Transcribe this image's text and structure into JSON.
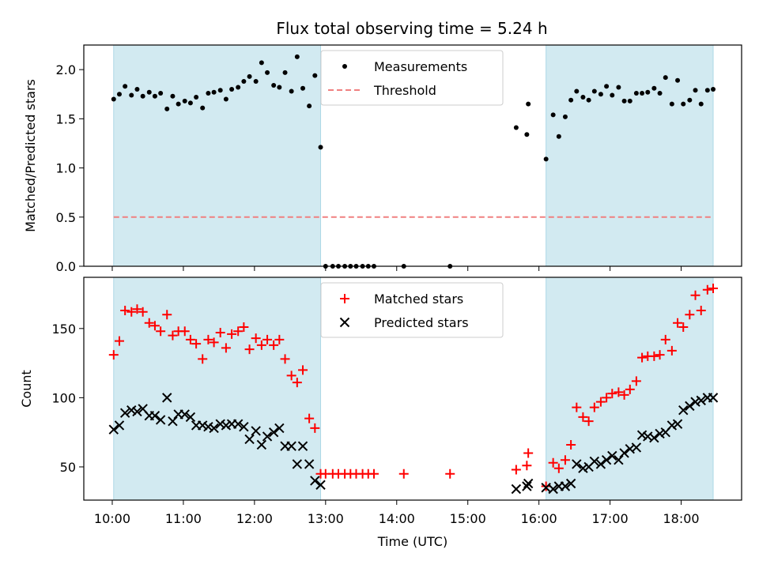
{
  "title": "Flux total observing time = 5.24 h",
  "colors": {
    "shade": "#add8e6",
    "measurement": "#000000",
    "threshold": "#f08080",
    "matched": "#ff0000",
    "predicted": "#000000"
  },
  "chart_data": [
    {
      "type": "scatter",
      "panel": "top",
      "ylabel": "Matched/Predicted stars",
      "xlabel": "",
      "xlim": [
        9.6,
        18.85
      ],
      "ylim": [
        0.0,
        2.25
      ],
      "yticks": [
        0.0,
        0.5,
        1.0,
        1.5,
        2.0
      ],
      "ytick_labels": [
        "0.0",
        "0.5",
        "1.0",
        "1.5",
        "2.0"
      ],
      "shaded_regions": [
        [
          10.02,
          12.93
        ],
        [
          16.1,
          18.45
        ]
      ],
      "threshold": {
        "name": "Threshold",
        "value": 0.5,
        "x_range": [
          10.02,
          18.45
        ]
      },
      "legend": {
        "position": "top-center",
        "entries": [
          "Measurements",
          "Threshold"
        ]
      },
      "series": [
        {
          "name": "Measurements",
          "points": [
            [
              10.02,
              1.7
            ],
            [
              10.1,
              1.75
            ],
            [
              10.18,
              1.83
            ],
            [
              10.27,
              1.74
            ],
            [
              10.35,
              1.8
            ],
            [
              10.43,
              1.73
            ],
            [
              10.52,
              1.77
            ],
            [
              10.6,
              1.73
            ],
            [
              10.68,
              1.76
            ],
            [
              10.77,
              1.6
            ],
            [
              10.85,
              1.73
            ],
            [
              10.93,
              1.65
            ],
            [
              11.02,
              1.68
            ],
            [
              11.1,
              1.66
            ],
            [
              11.18,
              1.72
            ],
            [
              11.27,
              1.61
            ],
            [
              11.35,
              1.76
            ],
            [
              11.43,
              1.77
            ],
            [
              11.52,
              1.79
            ],
            [
              11.6,
              1.7
            ],
            [
              11.68,
              1.8
            ],
            [
              11.77,
              1.82
            ],
            [
              11.85,
              1.88
            ],
            [
              11.93,
              1.93
            ],
            [
              12.02,
              1.88
            ],
            [
              12.1,
              2.07
            ],
            [
              12.18,
              1.97
            ],
            [
              12.27,
              1.84
            ],
            [
              12.35,
              1.82
            ],
            [
              12.43,
              1.97
            ],
            [
              12.52,
              1.78
            ],
            [
              12.6,
              2.13
            ],
            [
              12.68,
              1.81
            ],
            [
              12.77,
              1.63
            ],
            [
              12.85,
              1.94
            ],
            [
              12.93,
              1.21
            ],
            [
              13.0,
              0.0
            ],
            [
              13.1,
              0.0
            ],
            [
              13.18,
              0.0
            ],
            [
              13.27,
              0.0
            ],
            [
              13.35,
              0.0
            ],
            [
              13.43,
              0.0
            ],
            [
              13.52,
              0.0
            ],
            [
              13.6,
              0.0
            ],
            [
              13.68,
              0.0
            ],
            [
              14.1,
              0.0
            ],
            [
              14.75,
              0.0
            ],
            [
              15.68,
              1.41
            ],
            [
              15.83,
              1.34
            ],
            [
              15.85,
              1.65
            ],
            [
              16.1,
              1.09
            ],
            [
              16.2,
              1.54
            ],
            [
              16.28,
              1.32
            ],
            [
              16.37,
              1.52
            ],
            [
              16.45,
              1.69
            ],
            [
              16.53,
              1.78
            ],
            [
              16.62,
              1.72
            ],
            [
              16.7,
              1.69
            ],
            [
              16.78,
              1.78
            ],
            [
              16.87,
              1.75
            ],
            [
              16.95,
              1.83
            ],
            [
              17.03,
              1.74
            ],
            [
              17.12,
              1.82
            ],
            [
              17.2,
              1.68
            ],
            [
              17.28,
              1.68
            ],
            [
              17.37,
              1.76
            ],
            [
              17.45,
              1.76
            ],
            [
              17.53,
              1.77
            ],
            [
              17.62,
              1.81
            ],
            [
              17.7,
              1.76
            ],
            [
              17.78,
              1.92
            ],
            [
              17.87,
              1.65
            ],
            [
              17.95,
              1.89
            ],
            [
              18.03,
              1.65
            ],
            [
              18.12,
              1.69
            ],
            [
              18.2,
              1.79
            ],
            [
              18.28,
              1.65
            ],
            [
              18.37,
              1.79
            ],
            [
              18.45,
              1.8
            ]
          ]
        }
      ]
    },
    {
      "type": "scatter",
      "panel": "bottom",
      "ylabel": "Count",
      "xlabel": "Time (UTC)",
      "xlim": [
        9.6,
        18.85
      ],
      "ylim": [
        26,
        187
      ],
      "yticks": [
        50,
        100,
        150
      ],
      "ytick_labels": [
        "50",
        "100",
        "150"
      ],
      "xticks": [
        10,
        11,
        12,
        13,
        14,
        15,
        16,
        17,
        18
      ],
      "xtick_labels": [
        "10:00",
        "11:00",
        "12:00",
        "13:00",
        "14:00",
        "15:00",
        "16:00",
        "17:00",
        "18:00"
      ],
      "shaded_regions": [
        [
          10.02,
          12.93
        ],
        [
          16.1,
          18.45
        ]
      ],
      "legend": {
        "position": "top-center",
        "entries": [
          "Matched stars",
          "Predicted stars"
        ]
      },
      "series": [
        {
          "name": "Matched stars",
          "points": [
            [
              10.02,
              131
            ],
            [
              10.1,
              141
            ],
            [
              10.18,
              163
            ],
            [
              10.27,
              162
            ],
            [
              10.35,
              164
            ],
            [
              10.43,
              162
            ],
            [
              10.52,
              154
            ],
            [
              10.6,
              152
            ],
            [
              10.68,
              148
            ],
            [
              10.77,
              160
            ],
            [
              10.85,
              145
            ],
            [
              10.93,
              148
            ],
            [
              11.02,
              148
            ],
            [
              11.1,
              142
            ],
            [
              11.18,
              139
            ],
            [
              11.27,
              128
            ],
            [
              11.35,
              142
            ],
            [
              11.43,
              140
            ],
            [
              11.52,
              147
            ],
            [
              11.6,
              136
            ],
            [
              11.68,
              146
            ],
            [
              11.77,
              148
            ],
            [
              11.85,
              151
            ],
            [
              11.93,
              135
            ],
            [
              12.02,
              143
            ],
            [
              12.1,
              138
            ],
            [
              12.18,
              142
            ],
            [
              12.27,
              138
            ],
            [
              12.35,
              142
            ],
            [
              12.43,
              128
            ],
            [
              12.52,
              116
            ],
            [
              12.6,
              111
            ],
            [
              12.68,
              120
            ],
            [
              12.77,
              85
            ],
            [
              12.85,
              78
            ],
            [
              12.93,
              45
            ],
            [
              13.0,
              45
            ],
            [
              13.1,
              45
            ],
            [
              13.18,
              45
            ],
            [
              13.27,
              45
            ],
            [
              13.35,
              45
            ],
            [
              13.43,
              45
            ],
            [
              13.52,
              45
            ],
            [
              13.6,
              45
            ],
            [
              13.68,
              45
            ],
            [
              14.1,
              45
            ],
            [
              14.75,
              45
            ],
            [
              15.68,
              48
            ],
            [
              15.83,
              51
            ],
            [
              15.85,
              60
            ],
            [
              16.1,
              36
            ],
            [
              16.2,
              53
            ],
            [
              16.28,
              49
            ],
            [
              16.37,
              55
            ],
            [
              16.45,
              66
            ],
            [
              16.53,
              93
            ],
            [
              16.62,
              86
            ],
            [
              16.7,
              83
            ],
            [
              16.78,
              93
            ],
            [
              16.87,
              97
            ],
            [
              16.95,
              100
            ],
            [
              17.03,
              103
            ],
            [
              17.12,
              104
            ],
            [
              17.2,
              102
            ],
            [
              17.28,
              106
            ],
            [
              17.37,
              112
            ],
            [
              17.45,
              129
            ],
            [
              17.53,
              130
            ],
            [
              17.62,
              130
            ],
            [
              17.7,
              131
            ],
            [
              17.78,
              142
            ],
            [
              17.87,
              134
            ],
            [
              17.95,
              154
            ],
            [
              18.03,
              151
            ],
            [
              18.12,
              160
            ],
            [
              18.2,
              174
            ],
            [
              18.28,
              163
            ],
            [
              18.37,
              178
            ],
            [
              18.45,
              179
            ]
          ]
        },
        {
          "name": "Predicted stars",
          "points": [
            [
              10.02,
              77
            ],
            [
              10.1,
              80
            ],
            [
              10.18,
              89
            ],
            [
              10.27,
              91
            ],
            [
              10.35,
              90
            ],
            [
              10.43,
              92
            ],
            [
              10.52,
              87
            ],
            [
              10.6,
              87
            ],
            [
              10.68,
              84
            ],
            [
              10.77,
              100
            ],
            [
              10.85,
              83
            ],
            [
              10.93,
              88
            ],
            [
              11.02,
              88
            ],
            [
              11.1,
              86
            ],
            [
              11.18,
              80
            ],
            [
              11.27,
              80
            ],
            [
              11.35,
              79
            ],
            [
              11.43,
              78
            ],
            [
              11.52,
              81
            ],
            [
              11.6,
              80
            ],
            [
              11.68,
              81
            ],
            [
              11.77,
              81
            ],
            [
              11.85,
              79
            ],
            [
              11.93,
              70
            ],
            [
              12.02,
              76
            ],
            [
              12.1,
              66
            ],
            [
              12.18,
              72
            ],
            [
              12.27,
              75
            ],
            [
              12.35,
              78
            ],
            [
              12.43,
              65
            ],
            [
              12.52,
              65
            ],
            [
              12.6,
              52
            ],
            [
              12.68,
              65
            ],
            [
              12.77,
              52
            ],
            [
              12.85,
              40
            ],
            [
              12.93,
              37
            ],
            [
              15.68,
              34
            ],
            [
              15.83,
              36
            ],
            [
              15.85,
              38
            ],
            [
              16.1,
              35
            ],
            [
              16.2,
              34
            ],
            [
              16.28,
              36
            ],
            [
              16.37,
              36
            ],
            [
              16.45,
              38
            ],
            [
              16.53,
              52
            ],
            [
              16.62,
              49
            ],
            [
              16.7,
              50
            ],
            [
              16.78,
              54
            ],
            [
              16.87,
              52
            ],
            [
              16.95,
              55
            ],
            [
              17.03,
              58
            ],
            [
              17.12,
              55
            ],
            [
              17.2,
              60
            ],
            [
              17.28,
              63
            ],
            [
              17.37,
              64
            ],
            [
              17.45,
              73
            ],
            [
              17.53,
              72
            ],
            [
              17.62,
              71
            ],
            [
              17.7,
              74
            ],
            [
              17.78,
              75
            ],
            [
              17.87,
              80
            ],
            [
              17.95,
              81
            ],
            [
              18.03,
              91
            ],
            [
              18.12,
              94
            ],
            [
              18.2,
              97
            ],
            [
              18.28,
              98
            ],
            [
              18.37,
              100
            ],
            [
              18.45,
              100
            ]
          ]
        }
      ]
    }
  ]
}
